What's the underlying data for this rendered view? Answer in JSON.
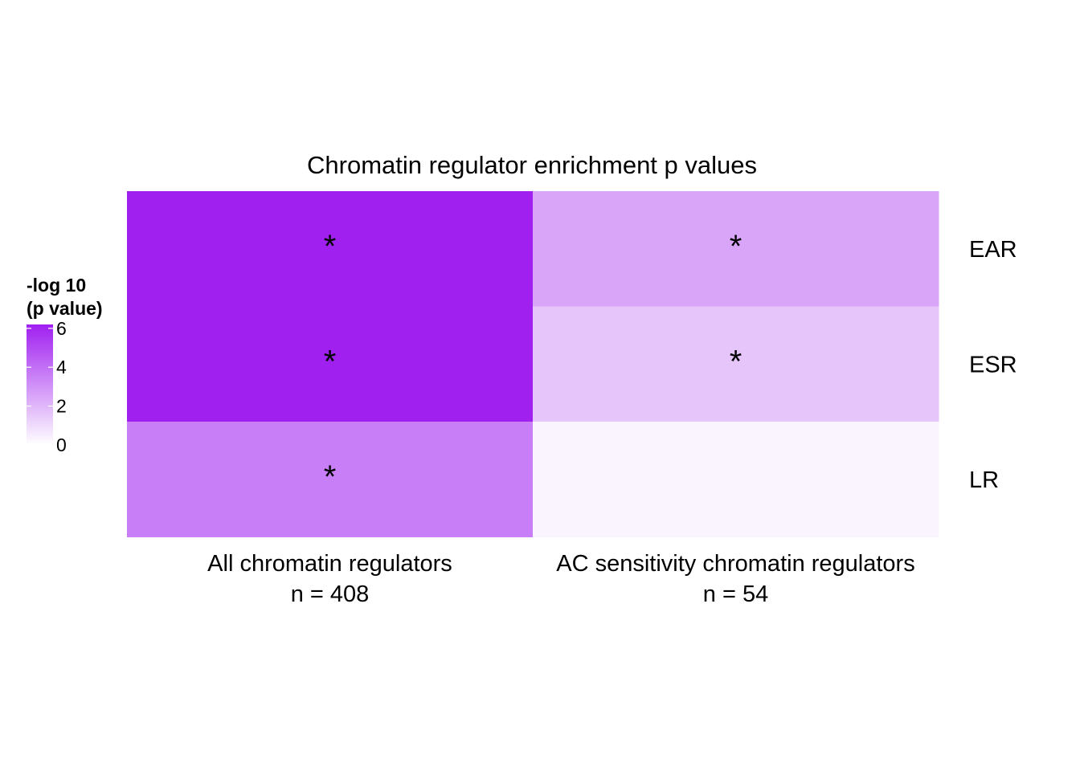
{
  "chart_data": {
    "type": "heatmap",
    "title": "Chromatin regulator enrichment p values",
    "x_categories": [
      {
        "label": "All chromatin regulators",
        "sublabel": "n = 408"
      },
      {
        "label": "AC sensitivity chromatin regulators",
        "sublabel": "n = 54"
      }
    ],
    "y_categories": [
      "EAR",
      "ESR",
      "LR"
    ],
    "values": [
      [
        6.2,
        2.5
      ],
      [
        6.2,
        1.6
      ],
      [
        3.6,
        0.3
      ]
    ],
    "significant": [
      [
        true,
        true
      ],
      [
        true,
        true
      ],
      [
        true,
        false
      ]
    ],
    "marker": "*",
    "legend": {
      "title_lines": [
        "-log 10",
        "(p value)"
      ],
      "ticks": [
        0,
        2,
        4,
        6
      ],
      "range": [
        0,
        6.2
      ]
    },
    "colors": {
      "low": "#ffffff",
      "high": "#a020f0"
    }
  }
}
